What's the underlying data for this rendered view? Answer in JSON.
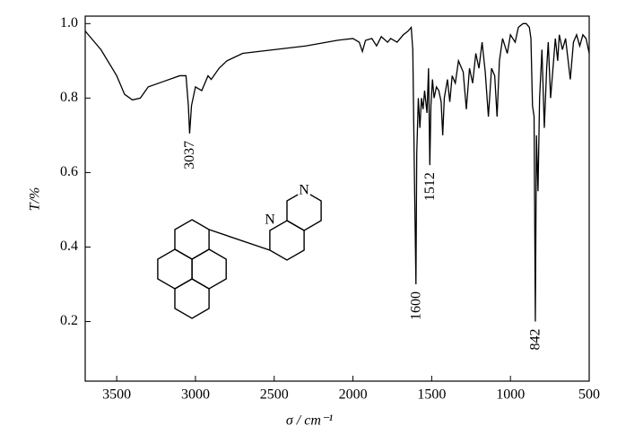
{
  "chart_data": {
    "type": "line",
    "xlabel": "σ / cm⁻¹",
    "ylabel": "T/%",
    "x": [
      3700,
      3600,
      3500,
      3450,
      3400,
      3350,
      3300,
      3200,
      3100,
      3060,
      3045,
      3037,
      3025,
      3000,
      2960,
      2920,
      2900,
      2850,
      2800,
      2700,
      2500,
      2300,
      2100,
      2000,
      1960,
      1940,
      1920,
      1880,
      1850,
      1820,
      1780,
      1760,
      1720,
      1680,
      1650,
      1630,
      1620,
      1610,
      1600,
      1595,
      1585,
      1575,
      1565,
      1555,
      1545,
      1530,
      1520,
      1512,
      1505,
      1495,
      1485,
      1470,
      1455,
      1440,
      1430,
      1420,
      1400,
      1385,
      1370,
      1350,
      1330,
      1300,
      1280,
      1260,
      1240,
      1220,
      1200,
      1180,
      1160,
      1140,
      1120,
      1100,
      1085,
      1070,
      1050,
      1020,
      1000,
      970,
      950,
      920,
      900,
      880,
      870,
      860,
      850,
      842,
      835,
      825,
      815,
      800,
      785,
      770,
      760,
      745,
      730,
      715,
      700,
      690,
      670,
      650,
      620,
      600,
      580,
      560,
      540,
      520,
      500
    ],
    "series": [
      {
        "color": "#000000",
        "values": [
          0.98,
          0.93,
          0.86,
          0.81,
          0.795,
          0.8,
          0.83,
          0.845,
          0.86,
          0.86,
          0.78,
          0.705,
          0.78,
          0.83,
          0.82,
          0.86,
          0.85,
          0.88,
          0.9,
          0.92,
          0.93,
          0.94,
          0.955,
          0.96,
          0.95,
          0.925,
          0.955,
          0.96,
          0.94,
          0.965,
          0.95,
          0.96,
          0.95,
          0.97,
          0.98,
          0.99,
          0.93,
          0.6,
          0.3,
          0.65,
          0.8,
          0.72,
          0.8,
          0.77,
          0.82,
          0.76,
          0.88,
          0.62,
          0.78,
          0.85,
          0.8,
          0.83,
          0.82,
          0.79,
          0.7,
          0.8,
          0.85,
          0.79,
          0.86,
          0.84,
          0.9,
          0.87,
          0.77,
          0.88,
          0.84,
          0.92,
          0.88,
          0.95,
          0.87,
          0.75,
          0.88,
          0.86,
          0.75,
          0.9,
          0.96,
          0.92,
          0.97,
          0.95,
          0.99,
          1.0,
          1.0,
          0.99,
          0.96,
          0.78,
          0.75,
          0.2,
          0.7,
          0.55,
          0.8,
          0.93,
          0.72,
          0.88,
          0.95,
          0.8,
          0.88,
          0.96,
          0.9,
          0.97,
          0.93,
          0.96,
          0.85,
          0.95,
          0.97,
          0.94,
          0.97,
          0.96,
          0.92
        ]
      }
    ],
    "xlim": [
      3700,
      500
    ],
    "ylim": [
      0.04,
      1.02
    ],
    "xticks": [
      3500,
      3000,
      2500,
      2000,
      1500,
      1000,
      500
    ],
    "yticks": [
      0.2,
      0.4,
      0.6,
      0.8,
      {
        "value": 1.0,
        "label": "1.0"
      }
    ],
    "annotations": [
      {
        "text": "3037"
      },
      {
        "text": "1600"
      },
      {
        "text": "1512"
      },
      {
        "text": "842"
      }
    ]
  },
  "structure": {
    "atoms": [
      "N",
      "N"
    ]
  }
}
